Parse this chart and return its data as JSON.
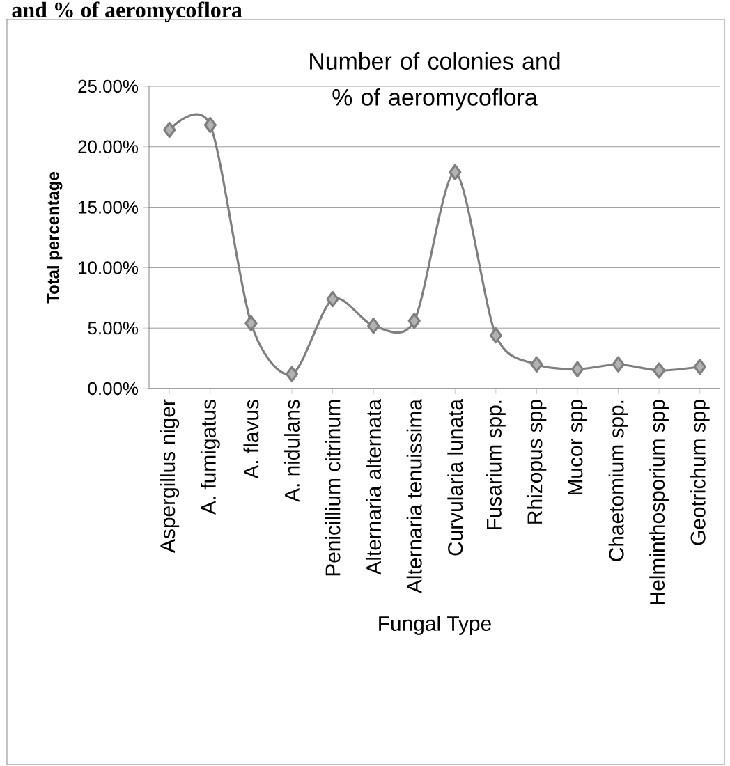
{
  "chart_data": {
    "type": "line",
    "title": "Number of colonies and % of aeromycoflora",
    "xlabel": "Fungal Type",
    "ylabel": "Total percentage",
    "annotations": [
      "and % of aeromycoflora"
    ],
    "categories": [
      "Aspergillus niger",
      "A. fumigatus",
      "A. flavus",
      "A. nidulans",
      "Penicillium citrinum",
      "Alternaria alternata",
      "Alternaria tenuissima",
      "Curvularia lunata",
      "Fusarium spp.",
      "Rhizopus spp",
      "Mucor spp",
      "Chaetomium spp.",
      "Helminthosporium spp",
      "Geotrichum spp"
    ],
    "series": [
      {
        "color": "#7f7f7f",
        "values": [
          21.4,
          21.8,
          5.4,
          1.2,
          7.4,
          5.2,
          5.6,
          17.9,
          4.4,
          2.0,
          1.6,
          2.0,
          1.5,
          1.8
        ]
      }
    ],
    "ylim": [
      0,
      25
    ],
    "yticks": [
      {
        "value": 0,
        "label": "0.00%"
      },
      {
        "value": 5,
        "label": "5.00%"
      },
      {
        "value": 10,
        "label": "10.00%"
      },
      {
        "value": 15,
        "label": "15.00%"
      },
      {
        "value": 20,
        "label": "20.00%"
      },
      {
        "value": 25,
        "label": "25.00%"
      }
    ],
    "grid": "y",
    "marker": "diamond",
    "line_style": "solid"
  }
}
